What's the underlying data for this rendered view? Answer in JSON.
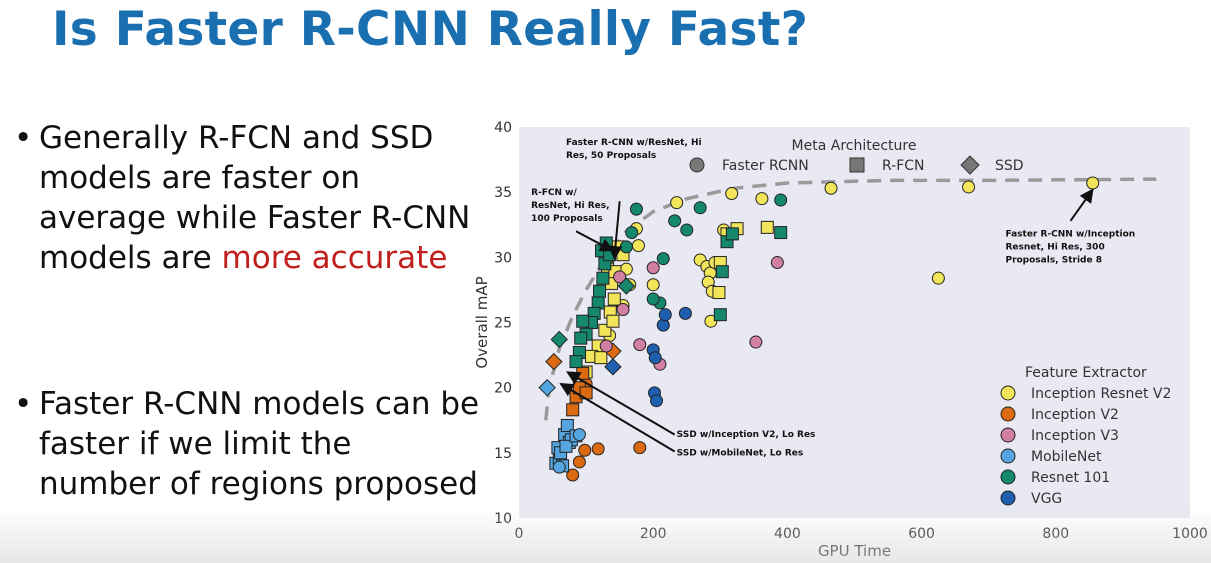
{
  "slide": {
    "title": "Is Faster R-CNN Really Fast?",
    "bullets": [
      {
        "prefix": "Generally R-FCN and SSD models are faster on average while Faster R-CNN models are ",
        "highlight": "more accurate",
        "suffix": "",
        "highlight_color": "#c0201d"
      },
      {
        "prefix": "Faster R-CNN models can be faster if we limit the number of regions proposed",
        "highlight": "",
        "suffix": ""
      }
    ],
    "bullet_symbol": "•",
    "title_color": "#1a6fb0"
  },
  "chart_data": {
    "type": "scatter",
    "xlabel": "GPU Time",
    "ylabel": "Overall mAP",
    "xlim": [
      0,
      1000
    ],
    "ylim": [
      10,
      40
    ],
    "xticks": [
      0,
      200,
      400,
      600,
      800,
      1000
    ],
    "yticks": [
      10,
      15,
      20,
      25,
      30,
      35,
      40
    ],
    "background": "#e9e9f3",
    "grid": false,
    "meta_legend": {
      "title": "Meta Architecture",
      "placement": "top",
      "entries": [
        {
          "label": "Faster RCNN",
          "marker": "circle"
        },
        {
          "label": "R-FCN",
          "marker": "square"
        },
        {
          "label": "SSD",
          "marker": "diamond"
        }
      ]
    },
    "feature_legend": {
      "title": "Feature Extractor",
      "placement": "bottom-right",
      "entries": [
        {
          "label": "Inception Resnet V2",
          "color": "#f2e55a"
        },
        {
          "label": "Inception V2",
          "color": "#db6a12"
        },
        {
          "label": "Inception V3",
          "color": "#d17fa3"
        },
        {
          "label": "MobileNet",
          "color": "#55a6e0"
        },
        {
          "label": "Resnet 101",
          "color": "#14876c"
        },
        {
          "label": "VGG",
          "color": "#1f5fb0"
        }
      ]
    },
    "frontier": [
      [
        40,
        17.5
      ],
      [
        45,
        20
      ],
      [
        60,
        23
      ],
      [
        80,
        25.5
      ],
      [
        100,
        27.5
      ],
      [
        130,
        30
      ],
      [
        160,
        32
      ],
      [
        200,
        33.5
      ],
      [
        250,
        34.5
      ],
      [
        320,
        35.3
      ],
      [
        400,
        35.7
      ],
      [
        550,
        35.9
      ],
      [
        700,
        35.9
      ],
      [
        950,
        36
      ]
    ],
    "annotations": [
      {
        "text": [
          "Faster R-CNN w/ResNet, Hi",
          "Res, 50 Proposals"
        ],
        "text_x": 70,
        "text_y": 38.6,
        "arrow_from": [
          150,
          34.3
        ],
        "arrow_to": [
          142,
          29.9
        ]
      },
      {
        "text": [
          "R-FCN w/",
          "ResNet, Hi Res,",
          "100 Proposals"
        ],
        "text_x": 18,
        "text_y": 34.8,
        "arrow_from": [
          85,
          32
        ],
        "arrow_to": [
          140,
          30.5
        ]
      },
      {
        "text": [
          "Faster R-CNN w/Inception",
          "Resnet, Hi Res, 300",
          "Proposals, Stride 8"
        ],
        "text_x": 725,
        "text_y": 31.6,
        "arrow_from": [
          822,
          32.8
        ],
        "arrow_to": [
          855,
          35.2
        ]
      },
      {
        "text": [
          "SSD w/Inception V2, Lo Res"
        ],
        "text_x": 235,
        "text_y": 16.2,
        "arrow_from": [
          232,
          16.4
        ],
        "arrow_to": [
          72,
          21.2
        ]
      },
      {
        "text": [
          "SSD w/MobileNet, Lo Res"
        ],
        "text_x": 235,
        "text_y": 14.8,
        "arrow_from": [
          232,
          15.1
        ],
        "arrow_to": [
          62,
          20.3
        ]
      }
    ],
    "series": [
      {
        "name": "Inception Resnet V2",
        "color": "#f2e55a",
        "points": [
          {
            "x": 175,
            "y": 32.2,
            "m": "circle"
          },
          {
            "x": 178,
            "y": 30.9,
            "m": "circle"
          },
          {
            "x": 152,
            "y": 30.5,
            "m": "circle"
          },
          {
            "x": 235,
            "y": 34.2,
            "m": "circle"
          },
          {
            "x": 317,
            "y": 34.9,
            "m": "circle"
          },
          {
            "x": 362,
            "y": 34.5,
            "m": "circle"
          },
          {
            "x": 465,
            "y": 35.3,
            "m": "circle"
          },
          {
            "x": 670,
            "y": 35.4,
            "m": "circle"
          },
          {
            "x": 855,
            "y": 35.7,
            "m": "circle"
          },
          {
            "x": 625,
            "y": 28.4,
            "m": "circle"
          },
          {
            "x": 200,
            "y": 27.9,
            "m": "circle"
          },
          {
            "x": 270,
            "y": 29.8,
            "m": "circle"
          },
          {
            "x": 280,
            "y": 29.3,
            "m": "circle"
          },
          {
            "x": 285,
            "y": 28.8,
            "m": "circle"
          },
          {
            "x": 282,
            "y": 28.1,
            "m": "circle"
          },
          {
            "x": 288,
            "y": 27.4,
            "m": "circle"
          },
          {
            "x": 286,
            "y": 25.1,
            "m": "circle"
          },
          {
            "x": 292,
            "y": 29.6,
            "m": "circle"
          },
          {
            "x": 305,
            "y": 32.1,
            "m": "circle"
          },
          {
            "x": 160,
            "y": 29.1,
            "m": "circle"
          },
          {
            "x": 165,
            "y": 27.9,
            "m": "circle"
          },
          {
            "x": 155,
            "y": 26.3,
            "m": "circle"
          },
          {
            "x": 135,
            "y": 24.0,
            "m": "circle"
          },
          {
            "x": 148,
            "y": 30.8,
            "m": "square"
          },
          {
            "x": 155,
            "y": 30.2,
            "m": "square"
          },
          {
            "x": 132,
            "y": 29.2,
            "m": "square"
          },
          {
            "x": 138,
            "y": 28.0,
            "m": "square"
          },
          {
            "x": 142,
            "y": 26.8,
            "m": "square"
          },
          {
            "x": 136,
            "y": 25.8,
            "m": "square"
          },
          {
            "x": 128,
            "y": 24.4,
            "m": "square"
          },
          {
            "x": 118,
            "y": 23.2,
            "m": "square"
          },
          {
            "x": 108,
            "y": 22.4,
            "m": "square"
          },
          {
            "x": 100,
            "y": 21.2,
            "m": "square"
          },
          {
            "x": 122,
            "y": 22.3,
            "m": "square"
          },
          {
            "x": 300,
            "y": 29.6,
            "m": "square"
          },
          {
            "x": 298,
            "y": 27.3,
            "m": "square"
          },
          {
            "x": 310,
            "y": 31.8,
            "m": "square"
          },
          {
            "x": 325,
            "y": 32.2,
            "m": "square"
          },
          {
            "x": 370,
            "y": 32.3,
            "m": "square"
          },
          {
            "x": 130,
            "y": 30.0,
            "m": "square"
          },
          {
            "x": 143,
            "y": 28.9,
            "m": "square"
          },
          {
            "x": 140,
            "y": 25.1,
            "m": "square"
          }
        ]
      },
      {
        "name": "Inception V2",
        "color": "#db6a12",
        "points": [
          {
            "x": 80,
            "y": 13.3,
            "m": "circle"
          },
          {
            "x": 90,
            "y": 14.3,
            "m": "circle"
          },
          {
            "x": 98,
            "y": 15.2,
            "m": "circle"
          },
          {
            "x": 118,
            "y": 15.3,
            "m": "circle"
          },
          {
            "x": 180,
            "y": 15.4,
            "m": "circle"
          },
          {
            "x": 95,
            "y": 19.8,
            "m": "circle"
          },
          {
            "x": 100,
            "y": 20.3,
            "m": "circle"
          },
          {
            "x": 80,
            "y": 18.3,
            "m": "square"
          },
          {
            "x": 85,
            "y": 19.3,
            "m": "square"
          },
          {
            "x": 90,
            "y": 20.0,
            "m": "square"
          },
          {
            "x": 95,
            "y": 21.1,
            "m": "square"
          },
          {
            "x": 100,
            "y": 19.6,
            "m": "square"
          },
          {
            "x": 52,
            "y": 22.0,
            "m": "diamond"
          },
          {
            "x": 140,
            "y": 22.8,
            "m": "diamond"
          }
        ]
      },
      {
        "name": "Inception V3",
        "color": "#d17fa3",
        "points": [
          {
            "x": 200,
            "y": 29.2,
            "m": "circle"
          },
          {
            "x": 155,
            "y": 26.0,
            "m": "circle"
          },
          {
            "x": 130,
            "y": 23.2,
            "m": "circle"
          },
          {
            "x": 180,
            "y": 23.3,
            "m": "circle"
          },
          {
            "x": 210,
            "y": 21.8,
            "m": "circle"
          },
          {
            "x": 353,
            "y": 23.5,
            "m": "circle"
          },
          {
            "x": 385,
            "y": 29.6,
            "m": "circle"
          },
          {
            "x": 150,
            "y": 28.5,
            "m": "circle"
          }
        ]
      },
      {
        "name": "MobileNet",
        "color": "#55a6e0",
        "points": [
          {
            "x": 55,
            "y": 14.2,
            "m": "square"
          },
          {
            "x": 60,
            "y": 14.6,
            "m": "square"
          },
          {
            "x": 58,
            "y": 15.4,
            "m": "square"
          },
          {
            "x": 62,
            "y": 15.0,
            "m": "square"
          },
          {
            "x": 68,
            "y": 16.4,
            "m": "square"
          },
          {
            "x": 72,
            "y": 17.1,
            "m": "square"
          },
          {
            "x": 75,
            "y": 15.8,
            "m": "square"
          },
          {
            "x": 78,
            "y": 16.0,
            "m": "square"
          },
          {
            "x": 65,
            "y": 14.0,
            "m": "square"
          },
          {
            "x": 70,
            "y": 15.5,
            "m": "square"
          },
          {
            "x": 85,
            "y": 16.3,
            "m": "square"
          },
          {
            "x": 90,
            "y": 16.4,
            "m": "circle"
          },
          {
            "x": 60,
            "y": 13.9,
            "m": "circle"
          },
          {
            "x": 42,
            "y": 20.0,
            "m": "diamond"
          }
        ]
      },
      {
        "name": "Resnet 101",
        "color": "#14876c",
        "points": [
          {
            "x": 175,
            "y": 33.7,
            "m": "circle"
          },
          {
            "x": 232,
            "y": 32.8,
            "m": "circle"
          },
          {
            "x": 250,
            "y": 32.1,
            "m": "circle"
          },
          {
            "x": 270,
            "y": 33.8,
            "m": "circle"
          },
          {
            "x": 390,
            "y": 34.4,
            "m": "circle"
          },
          {
            "x": 215,
            "y": 29.9,
            "m": "circle"
          },
          {
            "x": 210,
            "y": 26.5,
            "m": "circle"
          },
          {
            "x": 200,
            "y": 26.8,
            "m": "circle"
          },
          {
            "x": 168,
            "y": 31.9,
            "m": "circle"
          },
          {
            "x": 160,
            "y": 30.8,
            "m": "circle"
          },
          {
            "x": 123,
            "y": 30.5,
            "m": "square"
          },
          {
            "x": 128,
            "y": 29.5,
            "m": "square"
          },
          {
            "x": 125,
            "y": 28.4,
            "m": "square"
          },
          {
            "x": 120,
            "y": 27.4,
            "m": "square"
          },
          {
            "x": 118,
            "y": 26.5,
            "m": "square"
          },
          {
            "x": 112,
            "y": 25.7,
            "m": "square"
          },
          {
            "x": 108,
            "y": 25.0,
            "m": "square"
          },
          {
            "x": 100,
            "y": 24.1,
            "m": "square"
          },
          {
            "x": 95,
            "y": 25.1,
            "m": "square"
          },
          {
            "x": 92,
            "y": 23.8,
            "m": "square"
          },
          {
            "x": 90,
            "y": 22.7,
            "m": "square"
          },
          {
            "x": 85,
            "y": 22.0,
            "m": "square"
          },
          {
            "x": 130,
            "y": 31.1,
            "m": "square"
          },
          {
            "x": 135,
            "y": 30.2,
            "m": "square"
          },
          {
            "x": 310,
            "y": 31.2,
            "m": "square"
          },
          {
            "x": 318,
            "y": 31.8,
            "m": "square"
          },
          {
            "x": 390,
            "y": 31.9,
            "m": "square"
          },
          {
            "x": 303,
            "y": 28.9,
            "m": "square"
          },
          {
            "x": 300,
            "y": 25.6,
            "m": "square"
          },
          {
            "x": 60,
            "y": 23.7,
            "m": "diamond"
          },
          {
            "x": 160,
            "y": 27.8,
            "m": "diamond"
          }
        ]
      },
      {
        "name": "VGG",
        "color": "#1f5fb0",
        "points": [
          {
            "x": 215,
            "y": 24.8,
            "m": "circle"
          },
          {
            "x": 218,
            "y": 25.6,
            "m": "circle"
          },
          {
            "x": 248,
            "y": 25.7,
            "m": "circle"
          },
          {
            "x": 200,
            "y": 22.9,
            "m": "circle"
          },
          {
            "x": 203,
            "y": 22.3,
            "m": "circle"
          },
          {
            "x": 202,
            "y": 19.6,
            "m": "circle"
          },
          {
            "x": 205,
            "y": 19.0,
            "m": "circle"
          },
          {
            "x": 140,
            "y": 21.6,
            "m": "diamond"
          }
        ]
      }
    ]
  }
}
